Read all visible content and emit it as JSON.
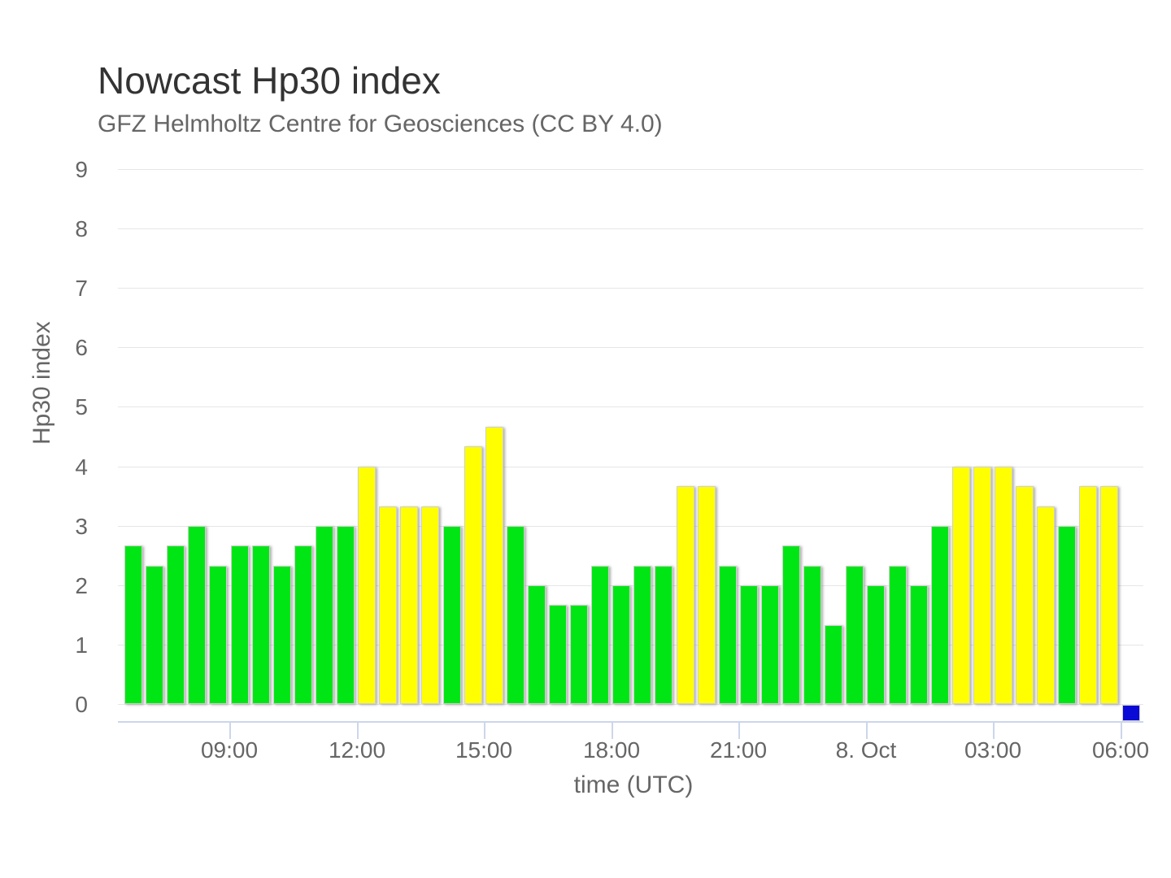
{
  "chart_data": {
    "type": "bar",
    "title": "Nowcast Hp30 index",
    "subtitle": "GFZ Helmholtz Centre for Geosciences (CC BY 4.0)",
    "xlabel": "time (UTC)",
    "ylabel": "Hp30 index",
    "ylim": [
      0,
      9
    ],
    "yticks": [
      0,
      1,
      2,
      3,
      4,
      5,
      6,
      7,
      8,
      9
    ],
    "grid": "horizontal",
    "legend": "none",
    "cadence": "30-minute intervals",
    "xticks": [
      {
        "label": "09:00",
        "slot": 5
      },
      {
        "label": "12:00",
        "slot": 11
      },
      {
        "label": "15:00",
        "slot": 17
      },
      {
        "label": "18:00",
        "slot": 23
      },
      {
        "label": "21:00",
        "slot": 29
      },
      {
        "label": "8. Oct",
        "slot": 35
      },
      {
        "label": "03:00",
        "slot": 41
      },
      {
        "label": "06:00",
        "slot": 47
      }
    ],
    "points": [
      {
        "time": "06:30",
        "value": 2.67,
        "level": "green"
      },
      {
        "time": "07:00",
        "value": 2.33,
        "level": "green"
      },
      {
        "time": "07:30",
        "value": 2.67,
        "level": "green"
      },
      {
        "time": "08:00",
        "value": 3.0,
        "level": "green"
      },
      {
        "time": "08:30",
        "value": 2.33,
        "level": "green"
      },
      {
        "time": "09:00",
        "value": 2.67,
        "level": "green"
      },
      {
        "time": "09:30",
        "value": 2.67,
        "level": "green"
      },
      {
        "time": "10:00",
        "value": 2.33,
        "level": "green"
      },
      {
        "time": "10:30",
        "value": 2.67,
        "level": "green"
      },
      {
        "time": "11:00",
        "value": 3.0,
        "level": "green"
      },
      {
        "time": "11:30",
        "value": 3.0,
        "level": "green"
      },
      {
        "time": "12:00",
        "value": 4.0,
        "level": "yellow"
      },
      {
        "time": "12:30",
        "value": 3.33,
        "level": "yellow"
      },
      {
        "time": "13:00",
        "value": 3.33,
        "level": "yellow"
      },
      {
        "time": "13:30",
        "value": 3.33,
        "level": "yellow"
      },
      {
        "time": "14:00",
        "value": 3.0,
        "level": "green"
      },
      {
        "time": "14:30",
        "value": 4.33,
        "level": "yellow"
      },
      {
        "time": "15:00",
        "value": 4.67,
        "level": "yellow"
      },
      {
        "time": "15:30",
        "value": 3.0,
        "level": "green"
      },
      {
        "time": "16:00",
        "value": 2.0,
        "level": "green"
      },
      {
        "time": "16:30",
        "value": 1.67,
        "level": "green"
      },
      {
        "time": "17:00",
        "value": 1.67,
        "level": "green"
      },
      {
        "time": "17:30",
        "value": 2.33,
        "level": "green"
      },
      {
        "time": "18:00",
        "value": 2.0,
        "level": "green"
      },
      {
        "time": "18:30",
        "value": 2.33,
        "level": "green"
      },
      {
        "time": "19:00",
        "value": 2.33,
        "level": "green"
      },
      {
        "time": "19:30",
        "value": 3.67,
        "level": "yellow"
      },
      {
        "time": "20:00",
        "value": 3.67,
        "level": "yellow"
      },
      {
        "time": "20:30",
        "value": 2.33,
        "level": "green"
      },
      {
        "time": "21:00",
        "value": 2.0,
        "level": "green"
      },
      {
        "time": "21:30",
        "value": 2.0,
        "level": "green"
      },
      {
        "time": "22:00",
        "value": 2.67,
        "level": "green"
      },
      {
        "time": "22:30",
        "value": 2.33,
        "level": "green"
      },
      {
        "time": "23:00",
        "value": 1.33,
        "level": "green"
      },
      {
        "time": "23:30",
        "value": 2.33,
        "level": "green"
      },
      {
        "time": "00:00",
        "value": 2.0,
        "level": "green"
      },
      {
        "time": "00:30",
        "value": 2.33,
        "level": "green"
      },
      {
        "time": "01:00",
        "value": 2.0,
        "level": "green"
      },
      {
        "time": "01:30",
        "value": 3.0,
        "level": "green"
      },
      {
        "time": "02:00",
        "value": 4.0,
        "level": "yellow"
      },
      {
        "time": "02:30",
        "value": 4.0,
        "level": "yellow"
      },
      {
        "time": "03:00",
        "value": 4.0,
        "level": "yellow"
      },
      {
        "time": "03:30",
        "value": 3.67,
        "level": "yellow"
      },
      {
        "time": "04:00",
        "value": 3.33,
        "level": "yellow"
      },
      {
        "time": "04:30",
        "value": 3.0,
        "level": "green"
      },
      {
        "time": "05:00",
        "value": 3.67,
        "level": "yellow"
      },
      {
        "time": "05:30",
        "value": 3.67,
        "level": "yellow"
      },
      {
        "time": "06:00",
        "value": 0,
        "level": "blue",
        "marker": true
      }
    ],
    "colors": {
      "green": "#00e614",
      "yellow": "#ffff00",
      "blue": "#0a0ad6",
      "grid": "#e6e6e6",
      "axis": "#ccd6eb",
      "text": "#666666",
      "title_text": "#333333"
    }
  }
}
